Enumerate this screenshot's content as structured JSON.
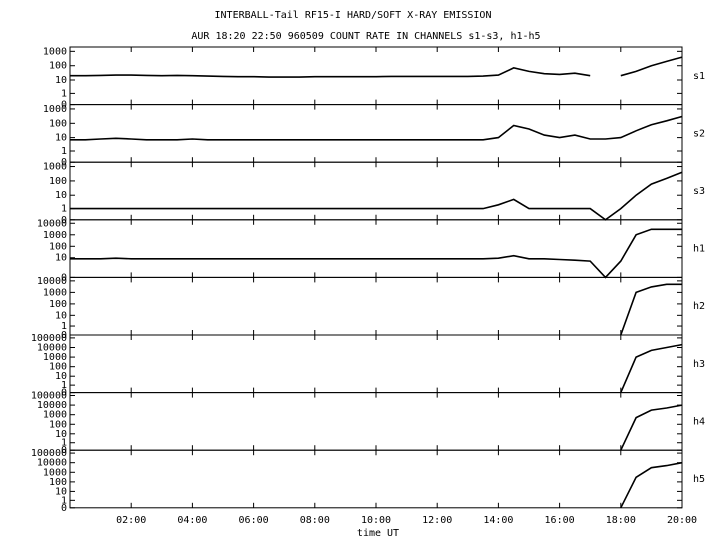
{
  "chart_data": {
    "type": "line",
    "title": "INTERBALL-Tail RF15-I HARD/SOFT X-RAY EMISSION",
    "subtitle": "AUR 18:20 22:50 960509  COUNT RATE IN CHANNELS s1-s3, h1-h5",
    "x_label": "time UT",
    "log_scale": true,
    "xlim": [
      0,
      20
    ],
    "xticks": [
      {
        "value": 2,
        "label": "02:00"
      },
      {
        "value": 4,
        "label": "04:00"
      },
      {
        "value": 6,
        "label": "06:00"
      },
      {
        "value": 8,
        "label": "08:00"
      },
      {
        "value": 10,
        "label": "10:00"
      },
      {
        "value": 12,
        "label": "12:00"
      },
      {
        "value": 14,
        "label": "14:00"
      },
      {
        "value": 16,
        "label": "16:00"
      },
      {
        "value": 18,
        "label": "18:00"
      },
      {
        "value": 20,
        "label": "20:00"
      }
    ],
    "x": [
      0,
      0.5,
      1,
      1.5,
      2,
      2.5,
      3,
      3.5,
      4,
      4.5,
      5,
      5.5,
      6,
      6.5,
      7,
      7.5,
      8,
      8.5,
      9,
      9.5,
      10,
      10.5,
      11,
      11.5,
      12,
      12.5,
      13,
      13.5,
      14,
      14.5,
      15,
      15.5,
      16,
      16.5,
      17,
      17.5,
      18,
      18.5,
      19,
      19.5,
      20
    ],
    "series": [
      {
        "name": "s1",
        "color": "#000000",
        "ylim": [
          0,
          2000
        ],
        "yticks": [
          0,
          1,
          10,
          100,
          1000
        ],
        "values": [
          20,
          20,
          21,
          22,
          22,
          21,
          20,
          21,
          20,
          19,
          18,
          17,
          17,
          16,
          16,
          16,
          17,
          17,
          17,
          17,
          17,
          18,
          18,
          18,
          18,
          18,
          18,
          19,
          22,
          70,
          40,
          28,
          25,
          30,
          20,
          null,
          20,
          40,
          100,
          200,
          400
        ]
      },
      {
        "name": "s2",
        "color": "#000000",
        "ylim": [
          0,
          2000
        ],
        "yticks": [
          0,
          1,
          10,
          100,
          1000
        ],
        "values": [
          7,
          7,
          8,
          9,
          8,
          7,
          7,
          7,
          8,
          7,
          7,
          7,
          7,
          7,
          7,
          7,
          7,
          7,
          7,
          7,
          7,
          7,
          7,
          7,
          7,
          7,
          7,
          7,
          10,
          70,
          40,
          15,
          10,
          15,
          8,
          8,
          10,
          30,
          80,
          150,
          300
        ]
      },
      {
        "name": "s3",
        "color": "#000000",
        "ylim": [
          0,
          2000
        ],
        "yticks": [
          0,
          1,
          10,
          100,
          1000
        ],
        "values": [
          1,
          1,
          1,
          1,
          1,
          1,
          1,
          1,
          1,
          1,
          1,
          1,
          1,
          1,
          1,
          1,
          1,
          1,
          1,
          1,
          1,
          1,
          1,
          1,
          1,
          1,
          1,
          1,
          2,
          5,
          1,
          1,
          1,
          1,
          1,
          0,
          1,
          10,
          60,
          150,
          400
        ]
      },
      {
        "name": "h1",
        "color": "#000000",
        "ylim": [
          0,
          20000
        ],
        "yticks": [
          0,
          10,
          100,
          1000,
          10000
        ],
        "values": [
          8,
          8,
          8,
          9,
          8,
          8,
          8,
          8,
          8,
          8,
          8,
          8,
          8,
          8,
          8,
          8,
          8,
          8,
          8,
          8,
          8,
          8,
          8,
          8,
          8,
          8,
          8,
          8,
          9,
          15,
          8,
          8,
          7,
          6,
          5,
          0,
          5,
          1000,
          3000,
          3000,
          3000
        ]
      },
      {
        "name": "h2",
        "color": "#000000",
        "ylim": [
          0,
          20000
        ],
        "yticks": [
          0,
          1,
          10,
          100,
          1000,
          10000
        ],
        "values": [
          null,
          null,
          null,
          null,
          null,
          null,
          null,
          null,
          null,
          null,
          null,
          null,
          null,
          null,
          null,
          null,
          null,
          null,
          null,
          null,
          null,
          null,
          null,
          null,
          null,
          null,
          null,
          null,
          null,
          null,
          null,
          null,
          null,
          null,
          null,
          null,
          0,
          1000,
          3000,
          5000,
          5000
        ]
      },
      {
        "name": "h3",
        "color": "#000000",
        "ylim": [
          0,
          200000
        ],
        "yticks": [
          0,
          1,
          10,
          100,
          1000,
          10000,
          100000
        ],
        "values": [
          null,
          null,
          null,
          null,
          null,
          null,
          null,
          null,
          null,
          null,
          null,
          null,
          null,
          null,
          null,
          null,
          null,
          null,
          null,
          null,
          null,
          null,
          null,
          null,
          null,
          null,
          null,
          null,
          null,
          null,
          null,
          null,
          null,
          null,
          null,
          null,
          0,
          1000,
          5000,
          10000,
          20000
        ]
      },
      {
        "name": "h4",
        "color": "#000000",
        "ylim": [
          0,
          200000
        ],
        "yticks": [
          0,
          1,
          10,
          100,
          1000,
          10000,
          100000
        ],
        "values": [
          null,
          null,
          null,
          null,
          null,
          null,
          null,
          null,
          null,
          null,
          null,
          null,
          null,
          null,
          null,
          null,
          null,
          null,
          null,
          null,
          null,
          null,
          null,
          null,
          null,
          null,
          null,
          null,
          null,
          null,
          null,
          null,
          null,
          null,
          null,
          null,
          0,
          500,
          3000,
          5000,
          10000
        ]
      },
      {
        "name": "h5",
        "color": "#000000",
        "ylim": [
          0,
          200000
        ],
        "yticks": [
          0,
          1,
          10,
          100,
          1000,
          10000,
          100000
        ],
        "values": [
          null,
          null,
          null,
          null,
          null,
          null,
          null,
          null,
          null,
          null,
          null,
          null,
          null,
          null,
          null,
          null,
          null,
          null,
          null,
          null,
          null,
          null,
          null,
          null,
          null,
          null,
          null,
          null,
          null,
          null,
          null,
          null,
          null,
          null,
          null,
          null,
          0,
          300,
          3000,
          5000,
          10000
        ]
      }
    ]
  }
}
